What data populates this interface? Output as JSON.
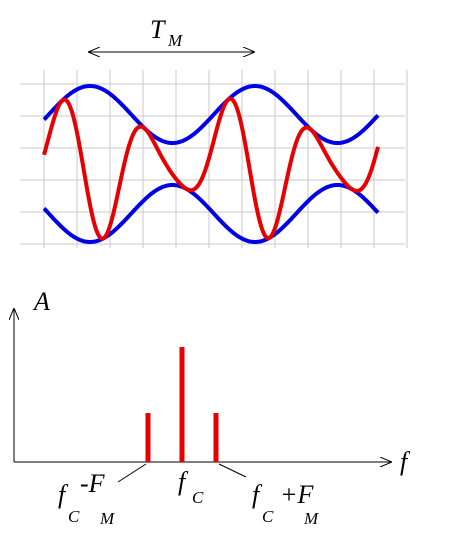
{
  "waveform": {
    "period_label": {
      "main": "T",
      "sub": "M"
    }
  },
  "spectrum": {
    "y_axis_label": "A",
    "x_axis_label": "f",
    "lower_sideband_label": {
      "f": "f",
      "f_sub": "C",
      "F": "-F",
      "F_sub": "M"
    },
    "carrier_label": {
      "f": "f",
      "f_sub": "C"
    },
    "upper_sideband_label": {
      "f": "f",
      "f_sub": "C",
      "F": "+F",
      "F_sub": "M"
    }
  }
}
